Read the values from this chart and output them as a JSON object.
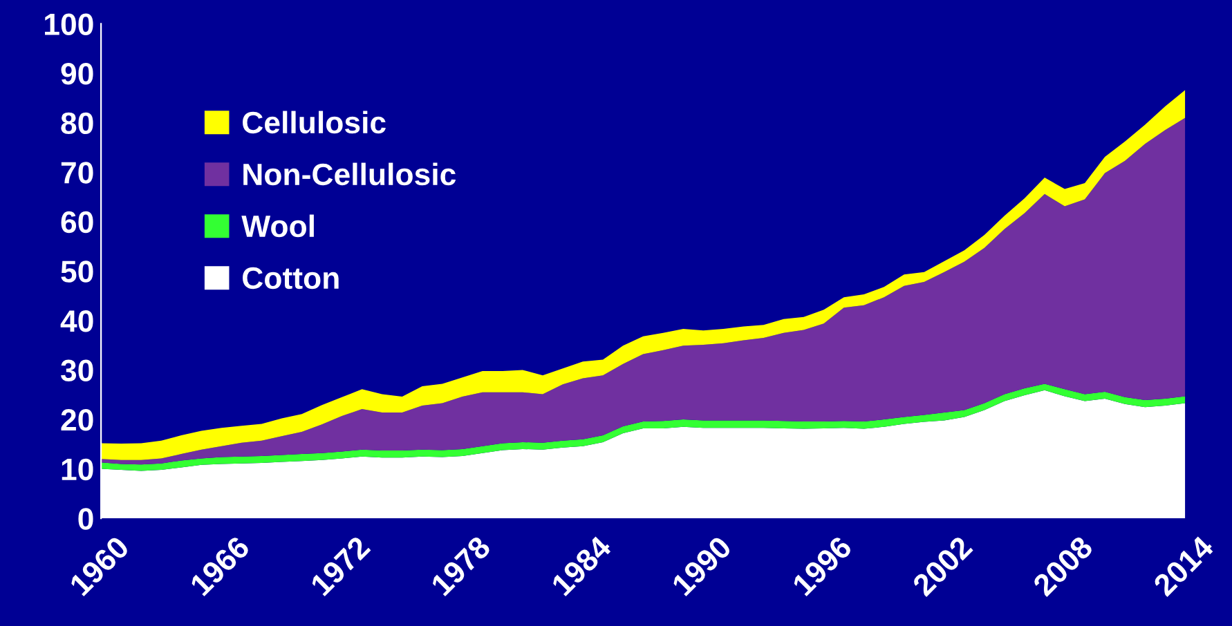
{
  "chart_data": {
    "type": "area",
    "stacked": true,
    "x": [
      1960,
      1961,
      1962,
      1963,
      1964,
      1965,
      1966,
      1967,
      1968,
      1969,
      1970,
      1971,
      1972,
      1973,
      1974,
      1975,
      1976,
      1977,
      1978,
      1979,
      1980,
      1981,
      1982,
      1983,
      1984,
      1985,
      1986,
      1987,
      1988,
      1989,
      1990,
      1991,
      1992,
      1993,
      1994,
      1995,
      1996,
      1997,
      1998,
      1999,
      2000,
      2001,
      2002,
      2003,
      2004,
      2005,
      2006,
      2007,
      2008,
      2009,
      2010,
      2011,
      2012,
      2013,
      2014
    ],
    "series": [
      {
        "name": "Cotton",
        "color": "#ffffff",
        "values": [
          10.0,
          9.8,
          9.6,
          9.8,
          10.3,
          10.8,
          11.0,
          11.1,
          11.2,
          11.4,
          11.6,
          11.8,
          12.1,
          12.5,
          12.3,
          12.3,
          12.5,
          12.4,
          12.6,
          13.2,
          13.8,
          14.0,
          13.9,
          14.3,
          14.6,
          15.4,
          17.2,
          18.2,
          18.2,
          18.5,
          18.3,
          18.3,
          18.3,
          18.3,
          18.2,
          18.1,
          18.2,
          18.3,
          18.1,
          18.5,
          19.1,
          19.5,
          19.8,
          20.5,
          21.9,
          23.7,
          24.9,
          25.9,
          24.7,
          23.7,
          24.2,
          23.1,
          22.5,
          22.8,
          23.3
        ]
      },
      {
        "name": "Wool",
        "color": "#33ff33",
        "values": [
          1.3,
          1.2,
          1.3,
          1.3,
          1.4,
          1.3,
          1.4,
          1.4,
          1.4,
          1.4,
          1.4,
          1.4,
          1.4,
          1.4,
          1.4,
          1.4,
          1.4,
          1.4,
          1.4,
          1.4,
          1.4,
          1.4,
          1.4,
          1.4,
          1.4,
          1.4,
          1.4,
          1.4,
          1.5,
          1.5,
          1.5,
          1.5,
          1.5,
          1.5,
          1.5,
          1.5,
          1.4,
          1.4,
          1.5,
          1.5,
          1.4,
          1.4,
          1.6,
          1.4,
          1.4,
          1.4,
          1.4,
          1.3,
          1.4,
          1.4,
          1.4,
          1.4,
          1.4,
          1.4,
          1.4
        ]
      },
      {
        "name": "Non-Cellulosic",
        "color": "#7030a0",
        "values": [
          0.7,
          0.8,
          0.9,
          1.0,
          1.3,
          1.8,
          2.2,
          2.8,
          3.1,
          3.8,
          4.5,
          5.8,
          7.2,
          8.2,
          7.7,
          7.7,
          8.9,
          9.5,
          10.6,
          10.9,
          10.3,
          10.1,
          9.8,
          11.4,
          12.3,
          12.1,
          12.6,
          13.6,
          14.3,
          14.9,
          15.3,
          15.6,
          16.2,
          16.7,
          17.8,
          18.5,
          19.8,
          22.9,
          23.5,
          24.7,
          26.5,
          26.9,
          28.4,
          30.0,
          31.4,
          33.4,
          35.4,
          38.4,
          37.0,
          39.4,
          44.2,
          47.8,
          51.8,
          54.3,
          56.3
        ]
      },
      {
        "name": "Cellulosic",
        "color": "#ffff00",
        "values": [
          3.2,
          3.3,
          3.4,
          3.6,
          3.8,
          3.8,
          3.7,
          3.4,
          3.4,
          3.6,
          3.6,
          3.9,
          3.8,
          4.0,
          3.7,
          3.2,
          3.9,
          3.9,
          3.9,
          4.3,
          4.3,
          4.5,
          3.8,
          3.2,
          3.4,
          3.2,
          3.7,
          3.6,
          3.5,
          3.4,
          2.9,
          2.9,
          2.8,
          2.6,
          2.8,
          2.6,
          2.8,
          2.1,
          2.2,
          2.1,
          2.3,
          2.0,
          2.2,
          2.3,
          2.6,
          2.7,
          3.0,
          3.3,
          3.5,
          3.3,
          3.3,
          3.9,
          3.9,
          4.8,
          5.6
        ]
      }
    ],
    "xlim": [
      1960,
      2014
    ],
    "xticks": [
      1960,
      1966,
      1972,
      1978,
      1984,
      1990,
      1996,
      2002,
      2008,
      2014
    ],
    "ylim": [
      0,
      100
    ],
    "yticks": [
      0,
      10,
      20,
      30,
      40,
      50,
      60,
      70,
      80,
      90,
      100
    ],
    "grid": false,
    "legend": "top left"
  }
}
